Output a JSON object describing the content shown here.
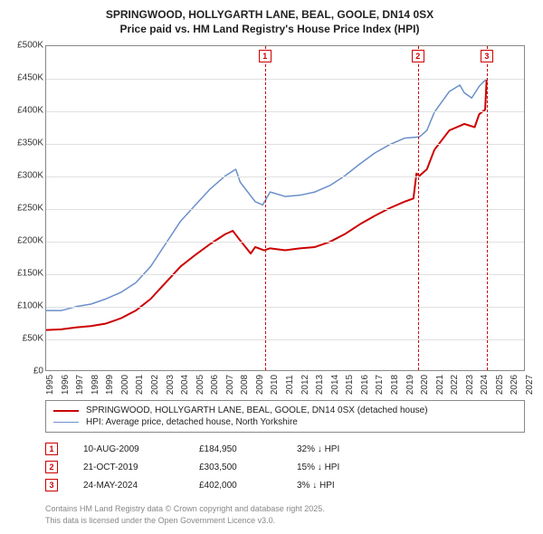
{
  "title": {
    "line1": "SPRINGWOOD, HOLLYGARTH LANE, BEAL, GOOLE, DN14 0SX",
    "line2": "Price paid vs. HM Land Registry's House Price Index (HPI)"
  },
  "chart": {
    "type": "line",
    "background_color": "#ffffff",
    "grid_color": "#e0e0e0",
    "axis_color": "#888888",
    "xlim": [
      1995,
      2027
    ],
    "ylim": [
      0,
      500000
    ],
    "ytick_step": 50000,
    "ytick_labels": [
      "£0",
      "£50K",
      "£100K",
      "£150K",
      "£200K",
      "£250K",
      "£300K",
      "£350K",
      "£400K",
      "£450K",
      "£500K"
    ],
    "xticks": [
      1995,
      1996,
      1997,
      1998,
      1999,
      2000,
      2001,
      2002,
      2003,
      2004,
      2005,
      2006,
      2007,
      2008,
      2009,
      2010,
      2011,
      2012,
      2013,
      2014,
      2015,
      2016,
      2017,
      2018,
      2019,
      2020,
      2021,
      2022,
      2023,
      2024,
      2025,
      2026,
      2027
    ],
    "title_fontsize": 12,
    "label_fontsize": 10,
    "series": [
      {
        "name": "price_paid",
        "color": "#cc0000",
        "width": 2,
        "points": [
          [
            1995,
            62000
          ],
          [
            1996,
            63000
          ],
          [
            1997,
            66000
          ],
          [
            1998,
            68000
          ],
          [
            1999,
            72000
          ],
          [
            2000,
            80000
          ],
          [
            2001,
            92000
          ],
          [
            2002,
            110000
          ],
          [
            2003,
            135000
          ],
          [
            2004,
            160000
          ],
          [
            2005,
            178000
          ],
          [
            2006,
            195000
          ],
          [
            2007,
            210000
          ],
          [
            2007.5,
            215000
          ],
          [
            2008,
            200000
          ],
          [
            2008.7,
            180000
          ],
          [
            2009,
            190000
          ],
          [
            2009.6,
            184950
          ],
          [
            2010,
            188000
          ],
          [
            2011,
            185000
          ],
          [
            2012,
            188000
          ],
          [
            2013,
            190000
          ],
          [
            2014,
            198000
          ],
          [
            2015,
            210000
          ],
          [
            2016,
            225000
          ],
          [
            2017,
            238000
          ],
          [
            2018,
            250000
          ],
          [
            2019,
            260000
          ],
          [
            2019.6,
            265000
          ],
          [
            2019.8,
            303500
          ],
          [
            2020,
            300000
          ],
          [
            2020.5,
            310000
          ],
          [
            2021,
            340000
          ],
          [
            2022,
            370000
          ],
          [
            2023,
            380000
          ],
          [
            2023.7,
            375000
          ],
          [
            2024,
            395000
          ],
          [
            2024.4,
            402000
          ],
          [
            2024.5,
            450000
          ]
        ]
      },
      {
        "name": "hpi",
        "color": "#6b8fc9",
        "width": 1.5,
        "points": [
          [
            1995,
            92000
          ],
          [
            1996,
            92000
          ],
          [
            1997,
            98000
          ],
          [
            1998,
            102000
          ],
          [
            1999,
            110000
          ],
          [
            2000,
            120000
          ],
          [
            2001,
            135000
          ],
          [
            2002,
            160000
          ],
          [
            2003,
            195000
          ],
          [
            2004,
            230000
          ],
          [
            2005,
            255000
          ],
          [
            2006,
            280000
          ],
          [
            2007,
            300000
          ],
          [
            2007.7,
            310000
          ],
          [
            2008,
            290000
          ],
          [
            2009,
            260000
          ],
          [
            2009.5,
            255000
          ],
          [
            2010,
            275000
          ],
          [
            2011,
            268000
          ],
          [
            2012,
            270000
          ],
          [
            2013,
            275000
          ],
          [
            2014,
            285000
          ],
          [
            2015,
            300000
          ],
          [
            2016,
            318000
          ],
          [
            2017,
            335000
          ],
          [
            2018,
            348000
          ],
          [
            2019,
            358000
          ],
          [
            2020,
            360000
          ],
          [
            2020.5,
            370000
          ],
          [
            2021,
            398000
          ],
          [
            2022,
            430000
          ],
          [
            2022.7,
            440000
          ],
          [
            2023,
            428000
          ],
          [
            2023.5,
            420000
          ],
          [
            2024,
            438000
          ],
          [
            2024.5,
            450000
          ]
        ]
      }
    ],
    "markers": [
      {
        "num": "1",
        "x": 2009.6
      },
      {
        "num": "2",
        "x": 2019.8
      },
      {
        "num": "3",
        "x": 2024.4
      }
    ]
  },
  "legend": {
    "items": [
      {
        "label": "SPRINGWOOD, HOLLYGARTH LANE, BEAL, GOOLE, DN14 0SX (detached house)",
        "color": "#cc0000",
        "width": 2
      },
      {
        "label": "HPI: Average price, detached house, North Yorkshire",
        "color": "#6b8fc9",
        "width": 1.5
      }
    ]
  },
  "events": [
    {
      "num": "1",
      "date": "10-AUG-2009",
      "price": "£184,950",
      "delta": "32% ↓ HPI"
    },
    {
      "num": "2",
      "date": "21-OCT-2019",
      "price": "£303,500",
      "delta": "15% ↓ HPI"
    },
    {
      "num": "3",
      "date": "24-MAY-2024",
      "price": "£402,000",
      "delta": "3% ↓ HPI"
    }
  ],
  "footer": {
    "line1": "Contains HM Land Registry data © Crown copyright and database right 2025.",
    "line2": "This data is licensed under the Open Government Licence v3.0."
  }
}
